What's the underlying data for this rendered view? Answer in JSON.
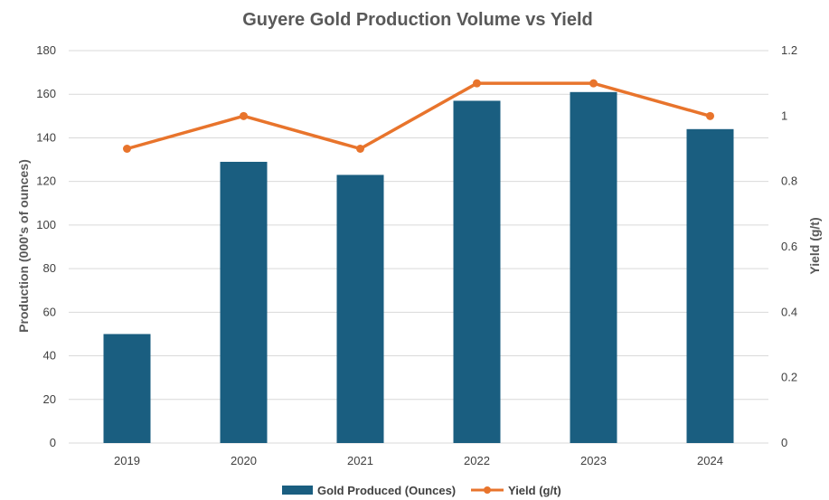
{
  "chart_data": {
    "type": "bar",
    "title": "Guyere Gold Production Volume vs Yield",
    "categories": [
      "2019",
      "2020",
      "2021",
      "2022",
      "2023",
      "2024"
    ],
    "series": [
      {
        "name": "Gold Produced (Ounces)",
        "type": "bar",
        "axis": "left",
        "color": "#1a5e80",
        "values": [
          50,
          129,
          123,
          157,
          161,
          144
        ]
      },
      {
        "name": "Yield (g/t)",
        "type": "line",
        "axis": "right",
        "color": "#e8742c",
        "values": [
          0.9,
          1.0,
          0.9,
          1.1,
          1.1,
          1.0
        ]
      }
    ],
    "ylabel": "Production (000's of ounces)",
    "y2label": "Yield (g/t)",
    "ylim": [
      0,
      180
    ],
    "y2lim": [
      0,
      1.2
    ],
    "yticks": [
      "0",
      "20",
      "40",
      "60",
      "80",
      "100",
      "120",
      "140",
      "160",
      "180"
    ],
    "y2ticks": [
      "0",
      "0.2",
      "0.4",
      "0.6",
      "0.8",
      "1",
      "1.2"
    ],
    "grid": true,
    "legend_position": "bottom"
  }
}
